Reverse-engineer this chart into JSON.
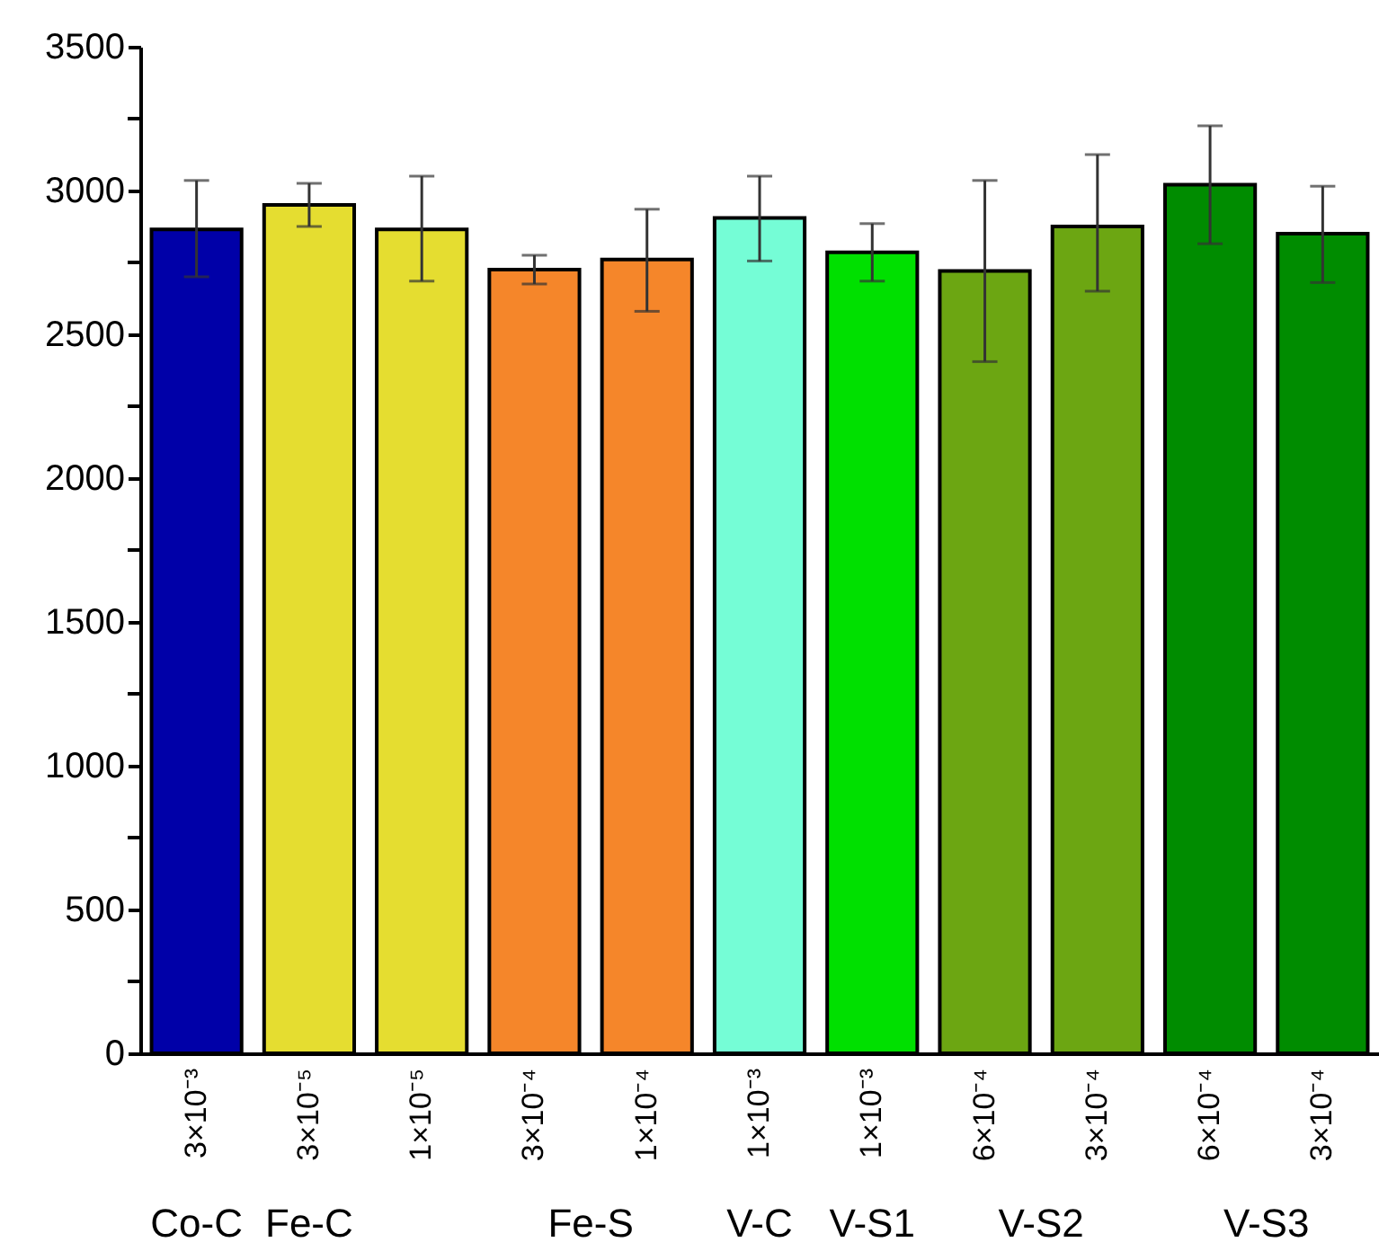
{
  "chart_data": {
    "type": "bar",
    "categories": [
      "3×10⁻³",
      "3×10⁻⁵",
      "1×10⁻⁵",
      "3×10⁻⁴",
      "1×10⁻⁴",
      "1×10⁻³",
      "1×10⁻³",
      "6×10⁻⁴",
      "3×10⁻⁴",
      "6×10⁻⁴",
      "3×10⁻⁴"
    ],
    "values": [
      2865,
      2950,
      2865,
      2725,
      2760,
      2905,
      2785,
      2720,
      2875,
      3020,
      2850
    ],
    "errors": [
      [
        2700,
        3035
      ],
      [
        2875,
        3025
      ],
      [
        2685,
        3050
      ],
      [
        2675,
        2775
      ],
      [
        2580,
        2935
      ],
      [
        2755,
        3050
      ],
      [
        2685,
        2885
      ],
      [
        2405,
        3035
      ],
      [
        2650,
        3125
      ],
      [
        2815,
        3225
      ],
      [
        2680,
        3015
      ]
    ],
    "colors": [
      "#0000a8",
      "#e5dd30",
      "#e5dd30",
      "#f5862a",
      "#f5862a",
      "#75fdd6",
      "#00e000",
      "#6ca612",
      "#6ca612",
      "#008c00",
      "#008c00"
    ],
    "ylim": [
      0,
      3500
    ],
    "yticks": [
      0,
      {
        "value": 250,
        "label": null
      },
      500,
      {
        "value": 750,
        "label": null
      },
      1000,
      {
        "value": 1250,
        "label": null
      },
      1500,
      {
        "value": 1750,
        "label": null
      },
      2000,
      {
        "value": 2250,
        "label": null
      },
      2500,
      {
        "value": 2750,
        "label": null
      },
      3000,
      {
        "value": 3250,
        "label": null
      },
      3500
    ],
    "annotations": [
      "Co-C",
      "Fe-C",
      "Fe-S",
      "V-C",
      "V-S1",
      "V-S2",
      "V-S3"
    ]
  }
}
